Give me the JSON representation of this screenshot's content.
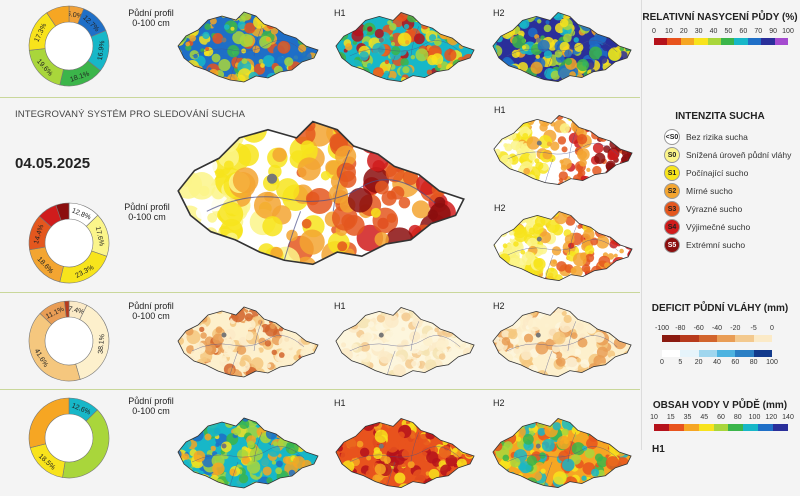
{
  "sections": {
    "soil_saturation": {
      "profile_label_line1": "Půdní profil",
      "profile_label_line2": "0-100 cm",
      "h1": "H1",
      "h2": "H2",
      "legend_title": "RELATIVNÍ NASYCENÍ PŮDY (%)",
      "legend_ticks": [
        "0",
        "10",
        "20",
        "30",
        "40",
        "50",
        "60",
        "70",
        "90",
        "100"
      ],
      "legend_colors": [
        "#b5121b",
        "#e8531d",
        "#f6a623",
        "#f8e31c",
        "#a9d63b",
        "#3bb54a",
        "#17b7c8",
        "#1f6fc7",
        "#2a2f9a",
        "#a54bd0"
      ],
      "donut": [
        {
          "label": "6.0%",
          "value": 6.0,
          "color": "#f0a13a"
        },
        {
          "label": "12.7%",
          "value": 12.7,
          "color": "#1f6fc7"
        },
        {
          "label": "16.9%",
          "value": 16.9,
          "color": "#17b7c8"
        },
        {
          "label": "18.1%",
          "value": 18.1,
          "color": "#3bb54a"
        },
        {
          "label": "19.6%",
          "value": 19.6,
          "color": "#a9d63b"
        },
        {
          "label": "17.3%",
          "value": 17.3,
          "color": "#f8e31c"
        },
        {
          "label": "",
          "value": 9.4,
          "color": "#f6a623"
        }
      ]
    },
    "drought_intensity": {
      "system_title": "INTEGROVANÝ SYSTÉM PRO SLEDOVÁNÍ SUCHA",
      "date": "04.05.2025",
      "profile_label_line1": "Půdní profil",
      "profile_label_line2": "0-100 cm",
      "h1": "H1",
      "h2": "H2",
      "legend_title": "INTENZITA SUCHA",
      "classes": [
        {
          "code": "<S0",
          "text": "Bez rizika sucha",
          "color": "#ffffff",
          "fg": "#222"
        },
        {
          "code": "S0",
          "text": "Snížená úroveň půdní vláhy",
          "color": "#fbf58a",
          "fg": "#222"
        },
        {
          "code": "S1",
          "text": "Počínající sucho",
          "color": "#f7e41c",
          "fg": "#222"
        },
        {
          "code": "S2",
          "text": "Mírné sucho",
          "color": "#f3a531",
          "fg": "#222"
        },
        {
          "code": "S3",
          "text": "Výrazné sucho",
          "color": "#e4571e",
          "fg": "#222"
        },
        {
          "code": "S4",
          "text": "Výjimečné sucho",
          "color": "#d01c1c",
          "fg": "#222"
        },
        {
          "code": "S5",
          "text": "Extrémní sucho",
          "color": "#8b0e0e",
          "fg": "#fff"
        }
      ],
      "donut": [
        {
          "label": "12.8%",
          "value": 12.8,
          "color": "#ffffff"
        },
        {
          "label": "17.6%",
          "value": 17.6,
          "color": "#fbf58a"
        },
        {
          "label": "23.3%",
          "value": 23.3,
          "color": "#f7e41c"
        },
        {
          "label": "18.6%",
          "value": 18.6,
          "color": "#f3a531"
        },
        {
          "label": "14.4%",
          "value": 14.4,
          "color": "#e4571e"
        },
        {
          "label": "",
          "value": 8.0,
          "color": "#d01c1c"
        },
        {
          "label": "",
          "value": 5.3,
          "color": "#8b0e0e"
        }
      ]
    },
    "deficit": {
      "profile_label_line1": "Půdní profil",
      "profile_label_line2": "0-100 cm",
      "h1": "H1",
      "h2": "H2",
      "legend_title": "DEFICIT PŮDNÍ VLÁHY (mm)",
      "legend_ticks_top": [
        "-100",
        "-80",
        "-60",
        "-40",
        "-20",
        "-5",
        "0"
      ],
      "legend_colors_top": [
        "#8b1a10",
        "#b83a1c",
        "#d2642c",
        "#e99d55",
        "#f3c98e",
        "#fbeac7"
      ],
      "legend_ticks_bottom": [
        "0",
        "5",
        "20",
        "40",
        "60",
        "80",
        "100"
      ],
      "legend_colors_bottom": [
        "#ffffff",
        "#e6f4fb",
        "#9fd6ee",
        "#4db3e0",
        "#2b7fc4",
        "#123a8c"
      ],
      "donut": [
        {
          "label": "7.4%",
          "value": 7.4,
          "color": "#fbeac7"
        },
        {
          "label": "38.1%",
          "value": 38.1,
          "color": "#fdf0cc"
        },
        {
          "label": "41.6%",
          "value": 41.6,
          "color": "#f5c77e"
        },
        {
          "label": "11.1%",
          "value": 11.1,
          "color": "#e99d55"
        },
        {
          "label": "",
          "value": 1.8,
          "color": "#b83a1c"
        }
      ]
    },
    "water_content": {
      "profile_label_line1": "Půdní profil",
      "profile_label_line2": "0-100 cm",
      "h1": "H1",
      "h2": "H2",
      "legend_title": "OBSAH VODY V PŮDĚ (mm)",
      "legend_ticks": [
        "10",
        "15",
        "35",
        "45",
        "60",
        "80",
        "100",
        "120",
        "140"
      ],
      "legend_colors": [
        "#b5121b",
        "#e8531d",
        "#f6a623",
        "#f8e31c",
        "#a9d63b",
        "#3bb54a",
        "#17b7c8",
        "#1f6fc7",
        "#2a2f9a"
      ],
      "donut": [
        {
          "label": "12.6%",
          "value": 12.6,
          "color": "#17b7c8"
        },
        {
          "label": "",
          "value": 40.0,
          "color": "#a9d63b"
        },
        {
          "label": "18.5%",
          "value": 18.5,
          "color": "#f8e31c"
        },
        {
          "label": "",
          "value": 28.9,
          "color": "#f6a623"
        }
      ],
      "footer_h1": "H1"
    }
  }
}
